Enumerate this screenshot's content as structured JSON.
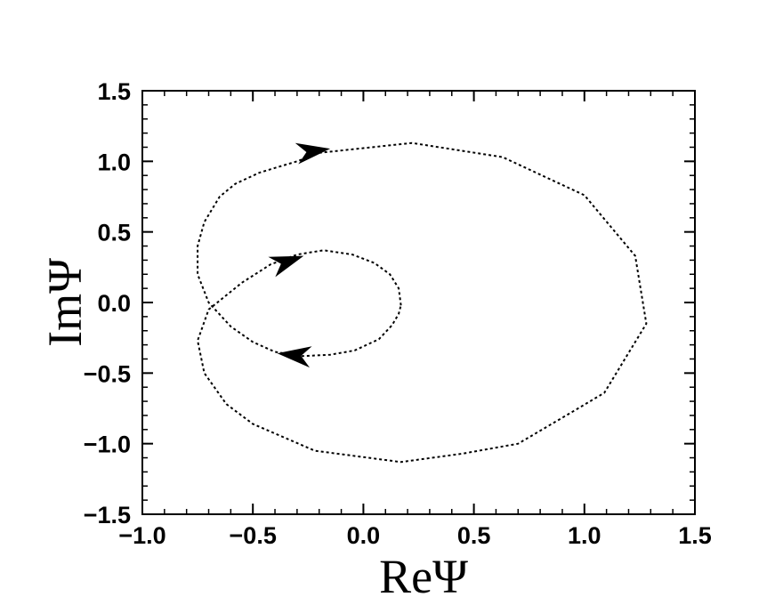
{
  "chart_data": {
    "type": "line",
    "title": "",
    "xlabel": "ReΨ",
    "ylabel": "ImΨ",
    "xlim": [
      -1.0,
      1.5
    ],
    "ylim": [
      -1.5,
      1.5
    ],
    "xticks": [
      -1.0,
      -0.5,
      0.0,
      0.5,
      1.0,
      1.5
    ],
    "xtick_labels": [
      "−1.0",
      "−0.5",
      "0.0",
      "0.5",
      "1.0",
      "1.5"
    ],
    "yticks": [
      -1.5,
      -1.0,
      -0.5,
      0.0,
      0.5,
      1.0,
      1.5
    ],
    "ytick_labels": [
      "−1.5",
      "−1.0",
      "−0.5",
      "0.0",
      "0.5",
      "1.0",
      "1.5"
    ],
    "grid": false,
    "line_style": "dotted",
    "line_color": "#000000",
    "series": [
      {
        "points": [
          [
            0.17,
            -0.02
          ],
          [
            0.16,
            0.1
          ],
          [
            0.12,
            0.2
          ],
          [
            0.05,
            0.28
          ],
          [
            -0.05,
            0.34
          ],
          [
            -0.18,
            0.37
          ],
          [
            -0.3,
            0.34
          ],
          [
            -0.42,
            0.27
          ],
          [
            -0.55,
            0.14
          ],
          [
            -0.7,
            -0.05
          ],
          [
            -0.75,
            -0.27
          ],
          [
            -0.72,
            -0.5
          ],
          [
            -0.62,
            -0.72
          ],
          [
            -0.5,
            -0.86
          ],
          [
            -0.22,
            -1.05
          ],
          [
            0.17,
            -1.13
          ],
          [
            0.45,
            -1.07
          ],
          [
            0.7,
            -1.0
          ],
          [
            0.95,
            -0.77
          ],
          [
            1.09,
            -0.64
          ],
          [
            1.28,
            -0.15
          ],
          [
            1.23,
            0.33
          ],
          [
            1.0,
            0.76
          ],
          [
            0.63,
            1.03
          ],
          [
            0.22,
            1.13
          ],
          [
            -0.2,
            1.06
          ],
          [
            -0.3,
            1.0
          ],
          [
            -0.47,
            0.92
          ],
          [
            -0.58,
            0.84
          ],
          [
            -0.65,
            0.75
          ],
          [
            -0.72,
            0.57
          ],
          [
            -0.75,
            0.4
          ],
          [
            -0.75,
            0.2
          ],
          [
            -0.7,
            0.0
          ],
          [
            -0.6,
            -0.17
          ],
          [
            -0.5,
            -0.28
          ],
          [
            -0.4,
            -0.35
          ],
          [
            -0.28,
            -0.38
          ],
          [
            -0.15,
            -0.37
          ],
          [
            -0.04,
            -0.34
          ],
          [
            0.07,
            -0.26
          ],
          [
            0.13,
            -0.16
          ],
          [
            0.16,
            -0.08
          ],
          [
            0.17,
            -0.02
          ]
        ]
      }
    ],
    "arrows": [
      {
        "x": -0.38,
        "y": 0.27,
        "dx": 0.11,
        "dy": 0.06
      },
      {
        "x": -0.28,
        "y": 1.06,
        "dx": 0.13,
        "dy": 0.03
      },
      {
        "x": -0.27,
        "y": -0.38,
        "dx": -0.12,
        "dy": 0.02
      }
    ]
  }
}
